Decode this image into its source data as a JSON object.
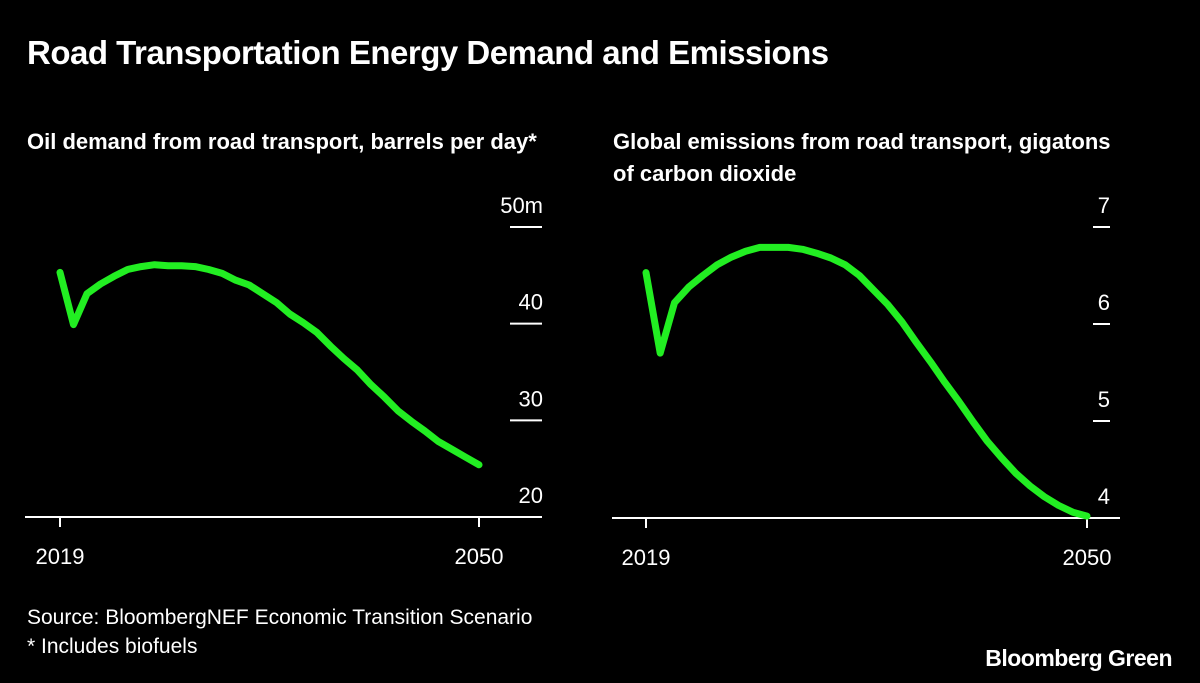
{
  "title": "Road Transportation Energy Demand and Emissions",
  "source": "Source: BloombergNEF Economic Transition Scenario",
  "footnote": "* Includes biofuels",
  "brand": "Bloomberg Green",
  "line_color": "#22ee22",
  "chart_data": [
    {
      "type": "line",
      "title": "Oil demand from road transport, barrels per day*",
      "x": [
        2019,
        2020,
        2021,
        2022,
        2023,
        2024,
        2025,
        2026,
        2027,
        2028,
        2029,
        2030,
        2031,
        2032,
        2033,
        2034,
        2035,
        2036,
        2037,
        2038,
        2039,
        2040,
        2041,
        2042,
        2043,
        2044,
        2045,
        2046,
        2047,
        2048,
        2049,
        2050
      ],
      "values": [
        45.3,
        39.9,
        43.1,
        44.1,
        44.9,
        45.6,
        45.9,
        46.1,
        46.0,
        46.0,
        45.9,
        45.6,
        45.2,
        44.5,
        44.0,
        43.1,
        42.2,
        41.0,
        40.1,
        39.1,
        37.7,
        36.4,
        35.2,
        33.7,
        32.4,
        31.0,
        29.9,
        28.9,
        27.8,
        27.0,
        26.2,
        25.4
      ],
      "ylim": [
        20,
        50
      ],
      "yticks": [
        20,
        30,
        40,
        50
      ],
      "ytick_labels": [
        "20",
        "30",
        "40",
        "50m"
      ],
      "xtick_labels": [
        "2019",
        "2050"
      ],
      "grid": false
    },
    {
      "type": "line",
      "title": "Global emissions from road transport, gigatons of carbon dioxide",
      "x": [
        2019,
        2020,
        2021,
        2022,
        2023,
        2024,
        2025,
        2026,
        2027,
        2028,
        2029,
        2030,
        2031,
        2032,
        2033,
        2034,
        2035,
        2036,
        2037,
        2038,
        2039,
        2040,
        2041,
        2042,
        2043,
        2044,
        2045,
        2046,
        2047,
        2048,
        2049,
        2050
      ],
      "values": [
        6.53,
        5.7,
        6.22,
        6.38,
        6.5,
        6.61,
        6.69,
        6.75,
        6.79,
        6.79,
        6.79,
        6.77,
        6.73,
        6.68,
        6.61,
        6.5,
        6.35,
        6.2,
        6.02,
        5.81,
        5.61,
        5.4,
        5.2,
        4.99,
        4.79,
        4.62,
        4.46,
        4.33,
        4.22,
        4.13,
        4.06,
        4.02
      ],
      "ylim": [
        4,
        7
      ],
      "yticks": [
        4,
        5,
        6,
        7
      ],
      "ytick_labels": [
        "4",
        "5",
        "6",
        "7"
      ],
      "xtick_labels": [
        "2019",
        "2050"
      ],
      "grid": false
    }
  ]
}
